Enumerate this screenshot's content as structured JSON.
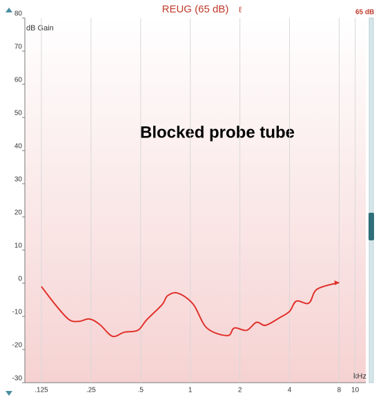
{
  "chart_data": {
    "type": "line",
    "title": "REUG (65 dB)",
    "level_label": "65 dB",
    "y_label": "dB Gain",
    "x_label": "kHz",
    "annotation": "Blocked probe tube",
    "x": [
      0.125,
      0.152,
      0.184,
      0.212,
      0.245,
      0.283,
      0.337,
      0.397,
      0.481,
      0.545,
      0.674,
      0.728,
      0.841,
      1.04,
      1.26,
      1.68,
      1.85,
      2.2,
      2.52,
      2.86,
      3.46,
      4.0,
      4.4,
      5.24,
      5.88,
      8
    ],
    "values": [
      -1,
      -6.5,
      -11,
      -11.5,
      -10.8,
      -12.5,
      -16,
      -14.8,
      -14.2,
      -11,
      -6.5,
      -3.8,
      -3,
      -6.3,
      -13.5,
      -15.8,
      -13.5,
      -14.2,
      -11.8,
      -12.7,
      -10.5,
      -8.5,
      -5.4,
      -6,
      -1.8,
      0.2
    ],
    "color": "#e0302a",
    "xscale": "log",
    "xlim": [
      0.0992,
      11.6
    ],
    "ylim": [
      -30,
      80
    ],
    "xticks": [
      {
        "value": 0.125,
        "label": ".125"
      },
      {
        "value": 0.25,
        "label": ".25"
      },
      {
        "value": 0.5,
        "label": ".5"
      },
      1,
      2,
      4,
      8,
      10
    ],
    "yticks": [
      -30,
      -20,
      -10,
      0,
      10,
      20,
      30,
      40,
      50,
      60,
      70,
      80
    ],
    "grid": "x"
  }
}
